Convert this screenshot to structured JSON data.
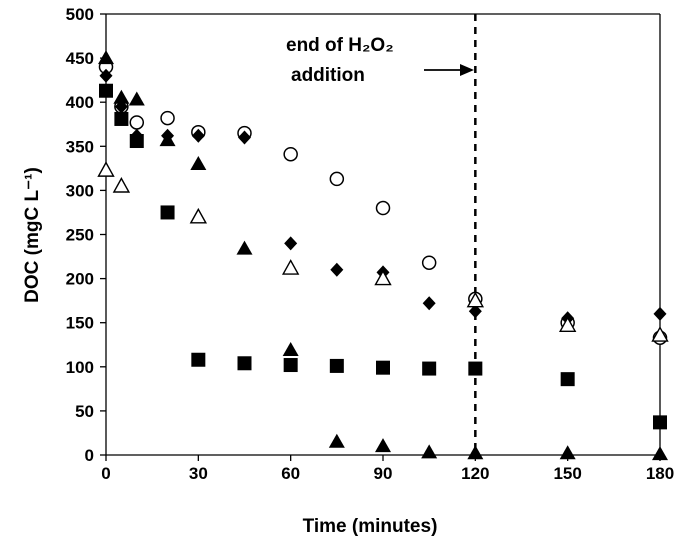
{
  "chart_data": {
    "type": "scatter",
    "title": "",
    "xlabel": "Time (minutes)",
    "ylabel": "DOC (mgC L⁻¹)",
    "xlim": [
      0,
      180
    ],
    "ylim": [
      0,
      500
    ],
    "xticks": [
      0,
      30,
      60,
      90,
      120,
      150,
      180
    ],
    "yticks": [
      0,
      50,
      100,
      150,
      200,
      250,
      300,
      350,
      400,
      450,
      500
    ],
    "grid": false,
    "legend": "none",
    "vline": {
      "x": 120,
      "style": "dashed"
    },
    "annotation": {
      "line1": "end of H₂O₂",
      "line2": "addition",
      "arrow_to_x": 120
    },
    "series": [
      {
        "marker": "open-circle",
        "x": [
          0,
          5,
          10,
          20,
          30,
          45,
          60,
          75,
          90,
          105,
          120,
          150,
          180
        ],
        "y": [
          440,
          395,
          377,
          382,
          366,
          365,
          341,
          313,
          280,
          218,
          177,
          150,
          133
        ]
      },
      {
        "marker": "filled-diamond",
        "x": [
          0,
          5,
          10,
          20,
          30,
          45,
          60,
          75,
          90,
          105,
          120,
          150,
          180
        ],
        "y": [
          430,
          395,
          362,
          362,
          362,
          360,
          240,
          210,
          207,
          172,
          163,
          155,
          160
        ]
      },
      {
        "marker": "open-triangle",
        "x": [
          0,
          5,
          30,
          60,
          90,
          120,
          150,
          180
        ],
        "y": [
          323,
          305,
          270,
          212,
          200,
          175,
          147,
          136
        ]
      },
      {
        "marker": "filled-square",
        "x": [
          0,
          5,
          10,
          20,
          30,
          45,
          60,
          75,
          90,
          105,
          120,
          150,
          180
        ],
        "y": [
          413,
          381,
          356,
          275,
          108,
          104,
          102,
          101,
          99,
          98,
          98,
          86,
          37
        ]
      },
      {
        "marker": "filled-triangle",
        "x": [
          0,
          5,
          10,
          20,
          30,
          45,
          60,
          75,
          90,
          105,
          120,
          150,
          180
        ],
        "y": [
          450,
          405,
          403,
          357,
          330,
          234,
          119,
          15,
          10,
          3,
          2,
          2,
          1
        ]
      }
    ]
  }
}
